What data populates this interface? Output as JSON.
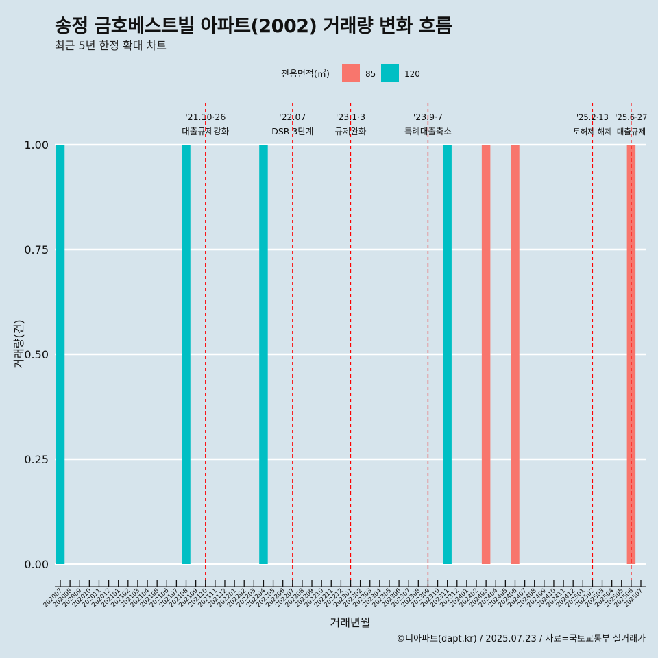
{
  "header": {
    "title": "송정 금호베스트빌 아파트(2002) 거래량 변화 흐름",
    "subtitle": "최근 5년 한정 확대 차트"
  },
  "caption": "©디아파트(dapt.kr) / 2025.07.23 / 자료=국토교통부 실거래가",
  "colors": {
    "background": "#d6e4ec",
    "series_85": "#f8766d",
    "series_120": "#00bfc4",
    "event_line": "#ff0000",
    "grid": "#ffffff"
  },
  "chart_data": {
    "type": "bar",
    "xlabel": "거래년월",
    "ylabel": "거래량(건)",
    "ylim": [
      0,
      1
    ],
    "yticks": [
      "0.00",
      "0.25",
      "0.50",
      "0.75",
      "1.00"
    ],
    "legend": {
      "title": "전용면적(㎡)",
      "placement": "top",
      "entries": [
        "85",
        "120"
      ]
    },
    "categories": [
      "202007",
      "202008",
      "202009",
      "202010",
      "202011",
      "202012",
      "202101",
      "202102",
      "202103",
      "202104",
      "202105",
      "202106",
      "202107",
      "202108",
      "202109",
      "202110",
      "202111",
      "202112",
      "202201",
      "202202",
      "202203",
      "202204",
      "202205",
      "202206",
      "202207",
      "202208",
      "202209",
      "202210",
      "202211",
      "202212",
      "202301",
      "202302",
      "202303",
      "202304",
      "202305",
      "202306",
      "202307",
      "202308",
      "202309",
      "202310",
      "202311",
      "202312",
      "202401",
      "202402",
      "202403",
      "202404",
      "202405",
      "202406",
      "202407",
      "202408",
      "202409",
      "202410",
      "202411",
      "202412",
      "202501",
      "202502",
      "202503",
      "202504",
      "202505",
      "202506",
      "202507"
    ],
    "series": [
      {
        "name": "85",
        "points": [
          {
            "x": "202403",
            "y": 1
          },
          {
            "x": "202406",
            "y": 1
          },
          {
            "x": "202506",
            "y": 1
          }
        ]
      },
      {
        "name": "120",
        "points": [
          {
            "x": "202007",
            "y": 1
          },
          {
            "x": "202108",
            "y": 1
          },
          {
            "x": "202204",
            "y": 1
          },
          {
            "x": "202311",
            "y": 1
          }
        ]
      }
    ],
    "events": [
      {
        "x": "202110",
        "date": "'21.10·26",
        "label": "대출규제강화"
      },
      {
        "x": "202207",
        "date": "'22.07",
        "label": "DSR 3단계"
      },
      {
        "x": "202301",
        "date": "'23.1·3",
        "label": "규제완화"
      },
      {
        "x": "202309",
        "date": "'23.9·7",
        "label": "특례대출축소"
      },
      {
        "x": "202502",
        "date": "'25.2·13",
        "label": "토허제 해제"
      },
      {
        "x": "202506",
        "date": "'25.6·27",
        "label": "대출규제"
      }
    ]
  }
}
